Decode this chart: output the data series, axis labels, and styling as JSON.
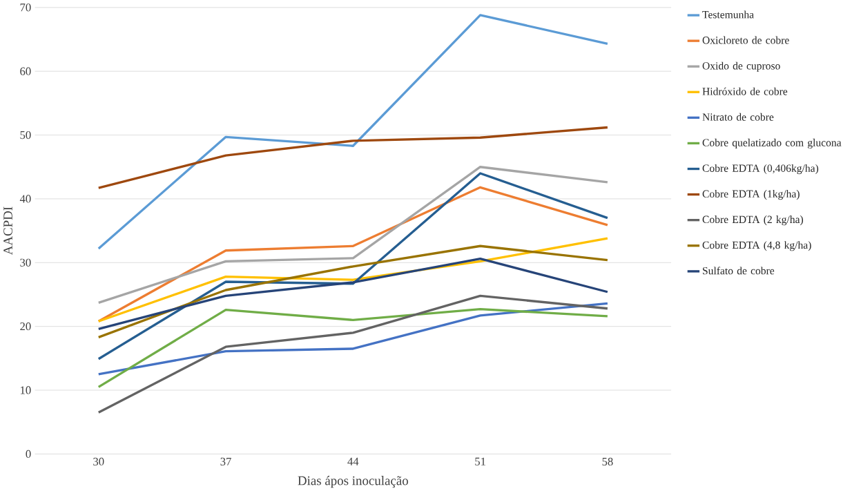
{
  "chart_data": {
    "type": "line",
    "xlabel": "Dias ápos inoculação",
    "ylabel": "AACPDI",
    "categories": [
      "30",
      "37",
      "44",
      "51",
      "58"
    ],
    "ylim": [
      0,
      70
    ],
    "yticks": [
      0,
      10,
      20,
      30,
      40,
      50,
      60,
      70
    ],
    "grid": "y",
    "legend": "right",
    "marker": "none",
    "line_style": "solid",
    "series": [
      {
        "name": "Testemunha",
        "color": "#5b9bd5",
        "values": [
          32.2,
          49.7,
          48.3,
          68.8,
          64.3
        ]
      },
      {
        "name": "Oxicloreto de cobre",
        "color": "#ed7d31",
        "values": [
          20.8,
          31.9,
          32.6,
          41.8,
          35.9
        ]
      },
      {
        "name": "Oxido de cuproso",
        "color": "#a5a5a5",
        "values": [
          23.7,
          30.2,
          30.7,
          45.0,
          42.6
        ]
      },
      {
        "name": "Hidróxido de cobre",
        "color": "#ffc000",
        "values": [
          20.8,
          27.8,
          27.3,
          30.2,
          33.8
        ]
      },
      {
        "name": "Nitrato de cobre",
        "color": "#4472c4",
        "values": [
          12.5,
          16.1,
          16.5,
          21.7,
          23.6
        ]
      },
      {
        "name": "Cobre quelatizado com glucona",
        "color": "#70ad47",
        "values": [
          10.5,
          22.6,
          21.0,
          22.7,
          21.6
        ]
      },
      {
        "name": "Cobre EDTA (0,406kg/ha)",
        "color": "#255e91",
        "values": [
          14.9,
          27.0,
          26.7,
          44.0,
          37.0
        ]
      },
      {
        "name": "Cobre EDTA (1kg/ha)",
        "color": "#9e480e",
        "values": [
          41.7,
          46.8,
          49.1,
          49.6,
          51.2
        ]
      },
      {
        "name": "Cobre  EDTA (2 kg/ha)",
        "color": "#636363",
        "values": [
          6.5,
          16.8,
          19.0,
          24.8,
          22.8
        ]
      },
      {
        "name": "Cobre EDTA (4,8 kg/ha)",
        "color": "#997300",
        "values": [
          18.3,
          25.7,
          29.4,
          32.6,
          30.4
        ]
      },
      {
        "name": "Sulfato de cobre",
        "color": "#264478",
        "values": [
          19.6,
          24.8,
          26.9,
          30.6,
          25.4
        ]
      }
    ]
  }
}
